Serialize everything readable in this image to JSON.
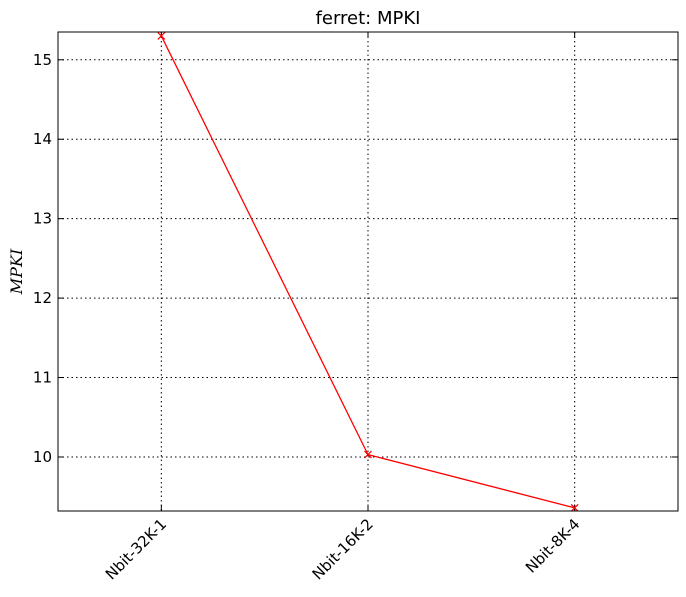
{
  "chart_data": {
    "type": "line",
    "title": "ferret: MPKI",
    "xlabel": "",
    "ylabel": "MPKI",
    "categories": [
      "Nbit-32K-1",
      "Nbit-16K-2",
      "Nbit-8K-4"
    ],
    "series": [
      {
        "values": [
          15.3,
          10.03,
          9.36
        ],
        "color": "#ff0000",
        "marker": "x"
      }
    ],
    "ylim": [
      9.32,
      15.35
    ],
    "yticks": [
      "10",
      "11",
      "12",
      "13",
      "14",
      "15"
    ],
    "grid": true
  }
}
